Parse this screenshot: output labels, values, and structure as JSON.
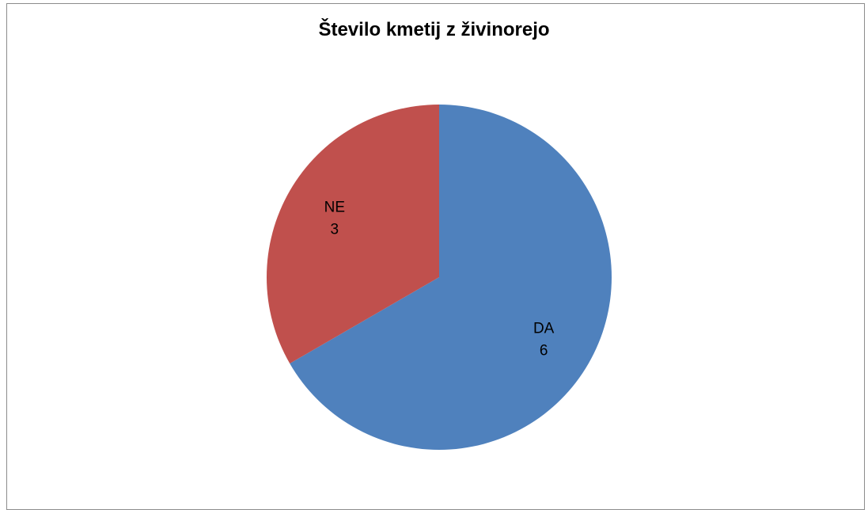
{
  "chart_data": {
    "type": "pie",
    "title": "Število kmetij z živinorejo",
    "slices": [
      {
        "label": "DA",
        "value": 6,
        "color": "#4f81bd"
      },
      {
        "label": "NE",
        "value": 3,
        "color": "#c0504d"
      }
    ],
    "start_angle_deg": 0,
    "direction": "clockwise",
    "legend": "none",
    "data_labels": "category-and-value"
  }
}
